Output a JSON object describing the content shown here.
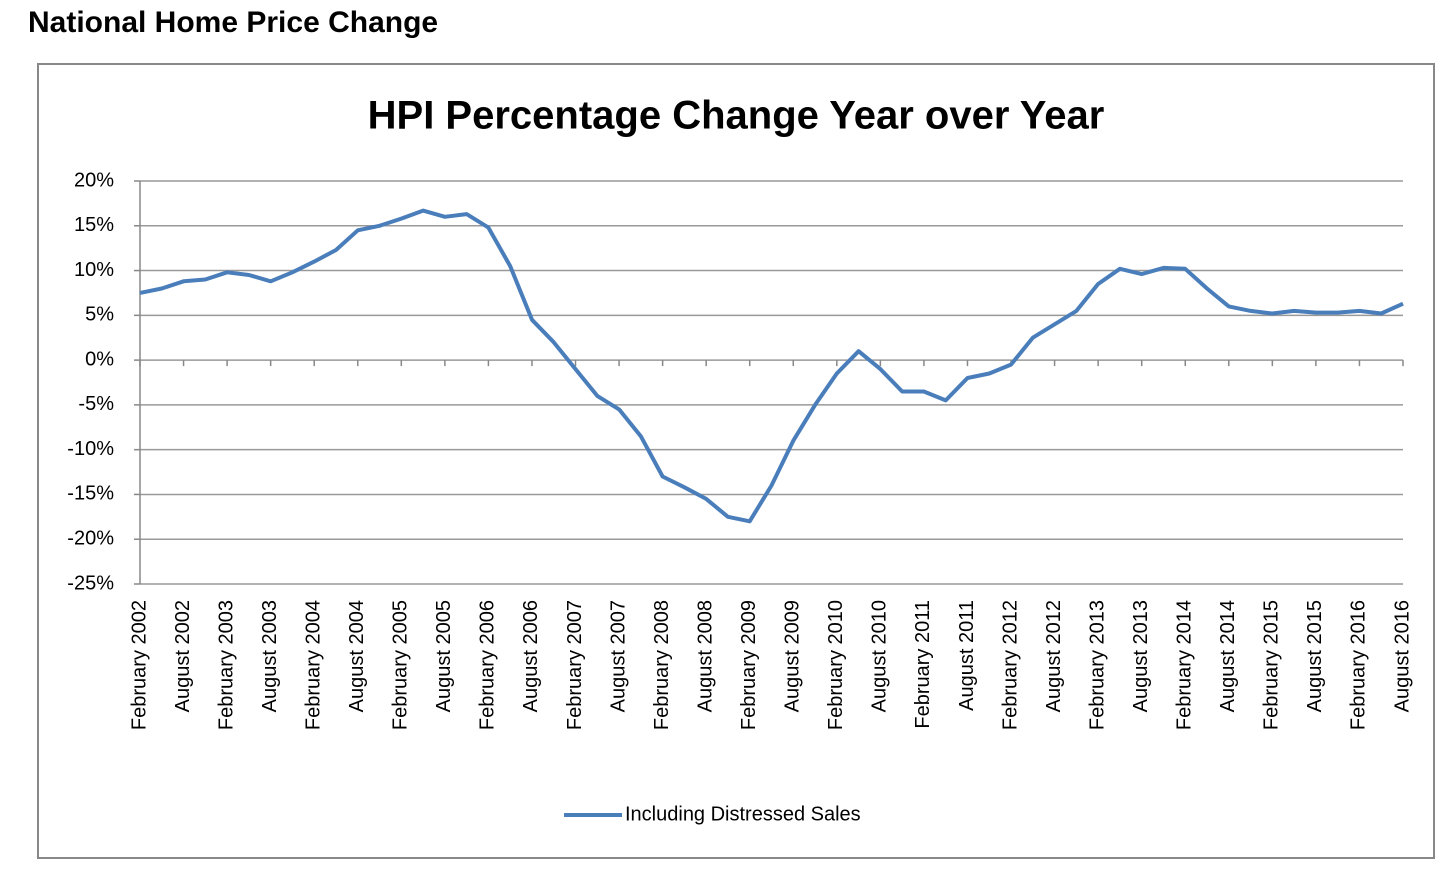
{
  "heading": "National Home Price Change",
  "chart_data": {
    "type": "line",
    "title": "HPI Percentage Change Year over Year",
    "categories": [
      "February 2002",
      null,
      "August 2002",
      null,
      "February 2003",
      null,
      "August 2003",
      null,
      "February 2004",
      null,
      "August 2004",
      null,
      "February 2005",
      null,
      "August 2005",
      null,
      "February 2006",
      null,
      "August 2006",
      null,
      "February 2007",
      null,
      "August 2007",
      null,
      "February 2008",
      null,
      "August 2008",
      null,
      "February 2009",
      null,
      "August 2009",
      null,
      "February 2010",
      null,
      "August 2010",
      null,
      "February 2011",
      null,
      "August 2011",
      null,
      "February 2012",
      null,
      "August 2012",
      null,
      "February 2013",
      null,
      "August 2013",
      null,
      "February 2014",
      null,
      "August 2014",
      null,
      "February 2015",
      null,
      "August 2015",
      null,
      "February 2016",
      null,
      "August 2016"
    ],
    "series": [
      {
        "name": "Including Distressed Sales",
        "color": "#4a7ebb",
        "values": [
          7.5,
          8.0,
          8.8,
          9.0,
          9.8,
          9.5,
          8.8,
          9.8,
          11.0,
          12.3,
          14.5,
          15.0,
          15.8,
          16.7,
          16.0,
          16.3,
          14.8,
          10.5,
          4.5,
          2.0,
          -1.0,
          -4.0,
          -5.5,
          -8.5,
          -13.0,
          -14.2,
          -15.5,
          -17.5,
          -18.0,
          -14.0,
          -9.0,
          -5.0,
          -1.5,
          1.0,
          -1.0,
          -3.5,
          -3.5,
          -4.5,
          -2.0,
          -1.5,
          -0.5,
          2.5,
          4.0,
          5.5,
          8.5,
          10.2,
          9.6,
          10.3,
          10.2,
          8.0,
          6.0,
          5.5,
          5.2,
          5.5,
          5.3,
          5.3,
          5.5,
          5.2,
          6.3
        ]
      }
    ],
    "ylim": [
      -25,
      20
    ],
    "yticks": [
      {
        "value": -25,
        "label": "-25%"
      },
      {
        "value": -20,
        "label": "-20%"
      },
      {
        "value": -15,
        "label": "-15%"
      },
      {
        "value": -10,
        "label": "-10%"
      },
      {
        "value": -5,
        "label": "-5%"
      },
      {
        "value": 0,
        "label": "0%"
      },
      {
        "value": 5,
        "label": "5%"
      },
      {
        "value": 10,
        "label": "10%"
      },
      {
        "value": 15,
        "label": "15%"
      },
      {
        "value": 20,
        "label": "20%"
      }
    ],
    "grid": true,
    "legend": "bottom"
  }
}
